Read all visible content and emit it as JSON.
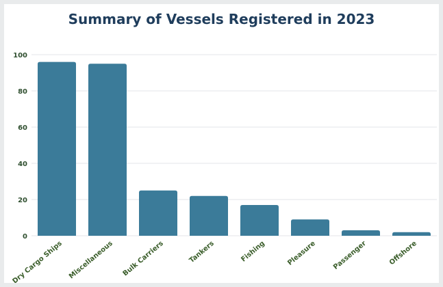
{
  "colors": {
    "bar": "#3b7b99",
    "title": "#1f3d5c",
    "grid": "#e3e6e8",
    "axis_text": "#2f4f2f"
  },
  "chart_data": {
    "type": "bar",
    "title": "Summary of Vessels Registered in 2023",
    "xlabel": "",
    "ylabel": "",
    "categories": [
      "Dry Cargo Ships",
      "Miscellaneous",
      "Bulk Carriers",
      "Tankers",
      "Fishing",
      "Pleasure",
      "Passenger",
      "Offshore"
    ],
    "values": [
      96,
      95,
      25,
      22,
      17,
      9,
      3,
      2
    ],
    "ylim": [
      0,
      100
    ],
    "yticks": [
      0,
      20,
      40,
      60,
      80,
      100
    ],
    "grid": true,
    "legend": "none"
  }
}
